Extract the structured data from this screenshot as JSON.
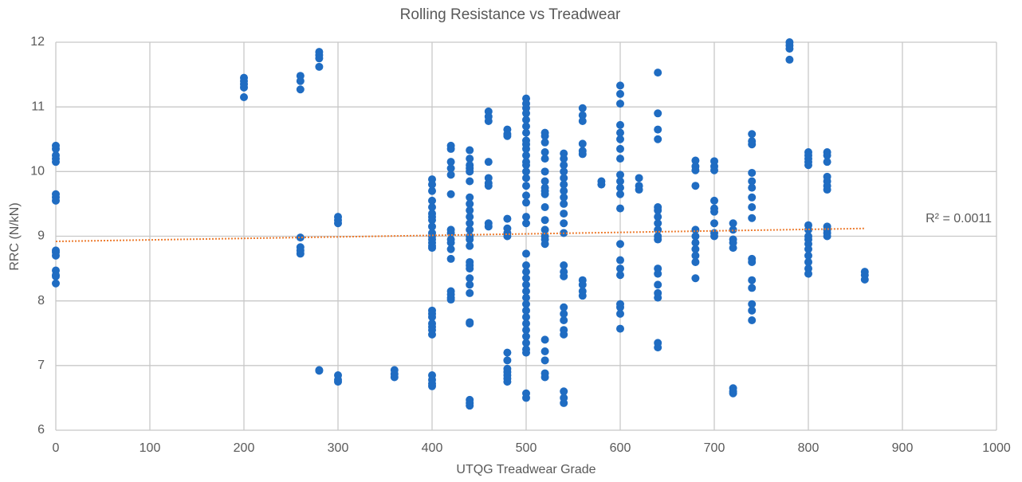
{
  "chart_data": {
    "type": "scatter",
    "title": "Rolling Resistance vs Treadwear",
    "x_label": "UTQG Treadwear Grade",
    "y_label": "RRC (N/kN)",
    "color": "#1f6cc2",
    "xlim": [
      0,
      1000
    ],
    "ylim": [
      6,
      12
    ],
    "xticks": [
      0,
      100,
      200,
      300,
      400,
      500,
      600,
      700,
      800,
      900,
      1000
    ],
    "yticks": [
      6,
      7,
      8,
      9,
      10,
      11,
      12
    ],
    "grid": true,
    "groups": [
      {
        "x": 0,
        "values": [
          10.4,
          10.35,
          10.25,
          10.2,
          10.15,
          9.65,
          9.6,
          9.55,
          8.78,
          8.75,
          8.7,
          8.47,
          8.4,
          8.38,
          8.27
        ]
      },
      {
        "x": 200,
        "values": [
          11.45,
          11.4,
          11.35,
          11.3,
          11.15
        ]
      },
      {
        "x": 260,
        "values": [
          11.48,
          11.4,
          11.27,
          8.98,
          8.83,
          8.78,
          8.73
        ]
      },
      {
        "x": 280,
        "values": [
          11.85,
          11.8,
          11.75,
          11.62,
          6.93,
          6.92
        ]
      },
      {
        "x": 300,
        "values": [
          9.3,
          9.25,
          9.2,
          6.85,
          6.78,
          6.75
        ]
      },
      {
        "x": 360,
        "values": [
          6.93,
          6.87,
          6.82
        ]
      },
      {
        "x": 400,
        "values": [
          9.88,
          9.8,
          9.7,
          9.55,
          9.45,
          9.35,
          9.3,
          9.25,
          9.15,
          9.05,
          9.0,
          8.95,
          8.9,
          8.85,
          8.82,
          7.85,
          7.8,
          7.75,
          7.65,
          7.6,
          7.55,
          7.48,
          6.85,
          6.78,
          6.72,
          6.68
        ]
      },
      {
        "x": 420,
        "values": [
          10.4,
          10.35,
          10.15,
          10.05,
          9.95,
          9.65,
          9.1,
          9.05,
          8.95,
          8.9,
          8.8,
          8.65,
          8.15,
          8.1,
          8.05,
          8.02
        ]
      },
      {
        "x": 440,
        "values": [
          10.33,
          10.2,
          10.1,
          10.05,
          10.0,
          9.85,
          9.6,
          9.5,
          9.4,
          9.3,
          9.2,
          9.1,
          9.0,
          8.95,
          8.85,
          8.6,
          8.55,
          8.5,
          8.35,
          8.25,
          8.12,
          7.67,
          7.65,
          6.47,
          6.42,
          6.38
        ]
      },
      {
        "x": 460,
        "values": [
          10.93,
          10.85,
          10.78,
          10.15,
          9.9,
          9.82,
          9.78,
          9.2,
          9.15
        ]
      },
      {
        "x": 480,
        "values": [
          10.65,
          10.58,
          10.55,
          9.27,
          9.12,
          9.05,
          9.0,
          7.2,
          7.08,
          6.95,
          6.9,
          6.85,
          6.8,
          6.75
        ]
      },
      {
        "x": 500,
        "values": [
          11.13,
          11.05,
          10.98,
          10.9,
          10.8,
          10.7,
          10.6,
          10.48,
          10.42,
          10.35,
          10.25,
          10.15,
          10.1,
          10.0,
          9.9,
          9.78,
          9.63,
          9.52,
          9.3,
          9.2,
          8.73,
          8.55,
          8.45,
          8.35,
          8.25,
          8.15,
          8.05,
          7.95,
          7.85,
          7.75,
          7.65,
          7.55,
          7.45,
          7.35,
          7.25,
          7.2,
          6.57,
          6.5
        ]
      },
      {
        "x": 520,
        "values": [
          10.6,
          10.55,
          10.45,
          10.3,
          10.2,
          10.0,
          9.85,
          9.75,
          9.7,
          9.65,
          9.45,
          9.25,
          9.1,
          9.0,
          8.95,
          8.88,
          7.4,
          7.22,
          7.08,
          6.88,
          6.82
        ]
      },
      {
        "x": 540,
        "values": [
          10.28,
          10.2,
          10.1,
          10.0,
          9.9,
          9.8,
          9.7,
          9.6,
          9.5,
          9.35,
          9.2,
          9.05,
          8.55,
          8.45,
          8.38,
          7.9,
          7.8,
          7.7,
          7.55,
          7.48,
          6.6,
          6.5,
          6.42
        ]
      },
      {
        "x": 560,
        "values": [
          10.98,
          10.87,
          10.78,
          10.43,
          10.32,
          10.27,
          8.32,
          8.25,
          8.15,
          8.08
        ]
      },
      {
        "x": 580,
        "values": [
          9.85,
          9.8
        ]
      },
      {
        "x": 600,
        "values": [
          11.33,
          11.2,
          11.05,
          10.72,
          10.6,
          10.5,
          10.35,
          10.2,
          9.95,
          9.85,
          9.75,
          9.65,
          9.43,
          8.88,
          8.63,
          8.5,
          8.4,
          7.95,
          7.9,
          7.8,
          7.57
        ]
      },
      {
        "x": 620,
        "values": [
          9.9,
          9.78,
          9.72
        ]
      },
      {
        "x": 640,
        "values": [
          11.53,
          10.9,
          10.65,
          10.5,
          9.45,
          9.4,
          9.3,
          9.2,
          9.1,
          9.0,
          8.95,
          8.5,
          8.42,
          8.25,
          8.12,
          8.05,
          7.35,
          7.28
        ]
      },
      {
        "x": 680,
        "values": [
          10.17,
          10.08,
          10.02,
          9.78,
          9.1,
          9.0,
          8.9,
          8.8,
          8.7,
          8.6,
          8.35
        ]
      },
      {
        "x": 700,
        "values": [
          10.16,
          10.08,
          10.02,
          9.55,
          9.43,
          9.38,
          9.2,
          9.05,
          9.0
        ]
      },
      {
        "x": 720,
        "values": [
          9.2,
          9.1,
          8.95,
          8.9,
          8.82,
          6.65,
          6.6,
          6.57
        ]
      },
      {
        "x": 740,
        "values": [
          10.58,
          10.47,
          10.42,
          9.98,
          9.85,
          9.75,
          9.6,
          9.45,
          9.28,
          8.65,
          8.6,
          8.32,
          8.2,
          7.95,
          7.85,
          7.7
        ]
      },
      {
        "x": 780,
        "values": [
          12.0,
          11.95,
          11.9,
          11.73
        ]
      },
      {
        "x": 800,
        "values": [
          10.3,
          10.25,
          10.2,
          10.15,
          10.1,
          9.17,
          9.1,
          9.0,
          8.95,
          8.88,
          8.8,
          8.7,
          8.6,
          8.5,
          8.42
        ]
      },
      {
        "x": 820,
        "values": [
          10.3,
          10.25,
          10.15,
          9.92,
          9.85,
          9.78,
          9.72,
          9.15,
          9.1,
          9.05,
          9.0
        ]
      },
      {
        "x": 860,
        "values": [
          8.45,
          8.4,
          8.33
        ]
      }
    ],
    "trendline": {
      "x": [
        0,
        860
      ],
      "y": [
        8.92,
        9.12
      ],
      "color": "#ed7d31",
      "label": "R² = 0.0011"
    }
  }
}
